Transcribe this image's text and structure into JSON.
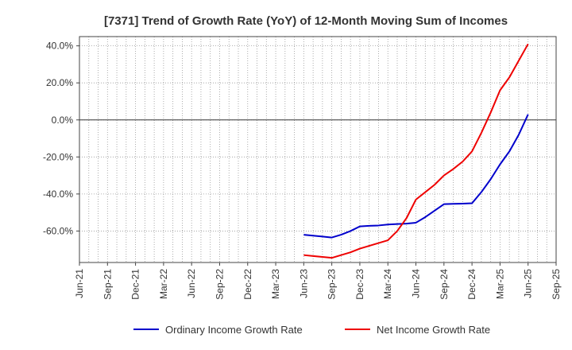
{
  "chart_data": {
    "type": "line",
    "title": "[7371]  Trend of Growth Rate (YoY) of 12-Month Moving Sum of Incomes",
    "xlabel": "",
    "ylabel": "",
    "x_ticks": [
      "Jun-21",
      "Sep-21",
      "Dec-21",
      "Mar-22",
      "Jun-22",
      "Sep-22",
      "Dec-22",
      "Mar-23",
      "Jun-23",
      "Sep-23",
      "Dec-23",
      "Mar-24",
      "Jun-24",
      "Sep-24",
      "Dec-24",
      "Mar-25",
      "Jun-25",
      "Sep-25"
    ],
    "y_ticks": [
      "40.0%",
      "20.0%",
      "0.0%",
      "-20.0%",
      "-40.0%",
      "-60.0%"
    ],
    "y_tick_values": [
      40,
      20,
      0,
      -20,
      -40,
      -60
    ],
    "ylim": [
      -77,
      45
    ],
    "grid": true,
    "legend_position": "bottom",
    "series": [
      {
        "name": "Ordinary Income Growth Rate",
        "color": "#0000cc",
        "x": [
          "Jun-23",
          "Jul-23",
          "Aug-23",
          "Sep-23",
          "Oct-23",
          "Nov-23",
          "Dec-23",
          "Jan-24",
          "Feb-24",
          "Mar-24",
          "Apr-24",
          "May-24",
          "Jun-24",
          "Jul-24",
          "Aug-24",
          "Sep-24",
          "Oct-24",
          "Nov-24",
          "Dec-24",
          "Jan-25",
          "Feb-25",
          "Mar-25",
          "Apr-25",
          "May-25",
          "Jun-25"
        ],
        "values": [
          -62,
          -62.5,
          -63,
          -63.5,
          -62,
          -60,
          -57.5,
          -57.2,
          -57,
          -56.5,
          -56.2,
          -56,
          -55.5,
          -52.5,
          -49,
          -45.5,
          -45.3,
          -45.2,
          -45,
          -39,
          -32,
          -24,
          -17,
          -8,
          3
        ]
      },
      {
        "name": "Net Income Growth Rate",
        "color": "#ee0000",
        "x": [
          "Jun-23",
          "Jul-23",
          "Aug-23",
          "Sep-23",
          "Oct-23",
          "Nov-23",
          "Dec-23",
          "Jan-24",
          "Feb-24",
          "Mar-24",
          "Apr-24",
          "May-24",
          "Jun-24",
          "Jul-24",
          "Aug-24",
          "Sep-24",
          "Oct-24",
          "Nov-24",
          "Dec-24",
          "Jan-25",
          "Feb-25",
          "Mar-25",
          "Apr-25",
          "May-25",
          "Jun-25"
        ],
        "values": [
          -73,
          -73.5,
          -74,
          -74.5,
          -73,
          -71.5,
          -69.5,
          -68,
          -66.5,
          -65,
          -60,
          -53,
          -43,
          -39,
          -35,
          -30,
          -26.5,
          -22.5,
          -17,
          -7,
          4,
          16,
          23,
          32,
          41
        ]
      }
    ]
  },
  "legend": {
    "items": [
      {
        "label": "Ordinary Income Growth Rate",
        "color": "#0000cc"
      },
      {
        "label": "Net Income Growth Rate",
        "color": "#ee0000"
      }
    ]
  }
}
